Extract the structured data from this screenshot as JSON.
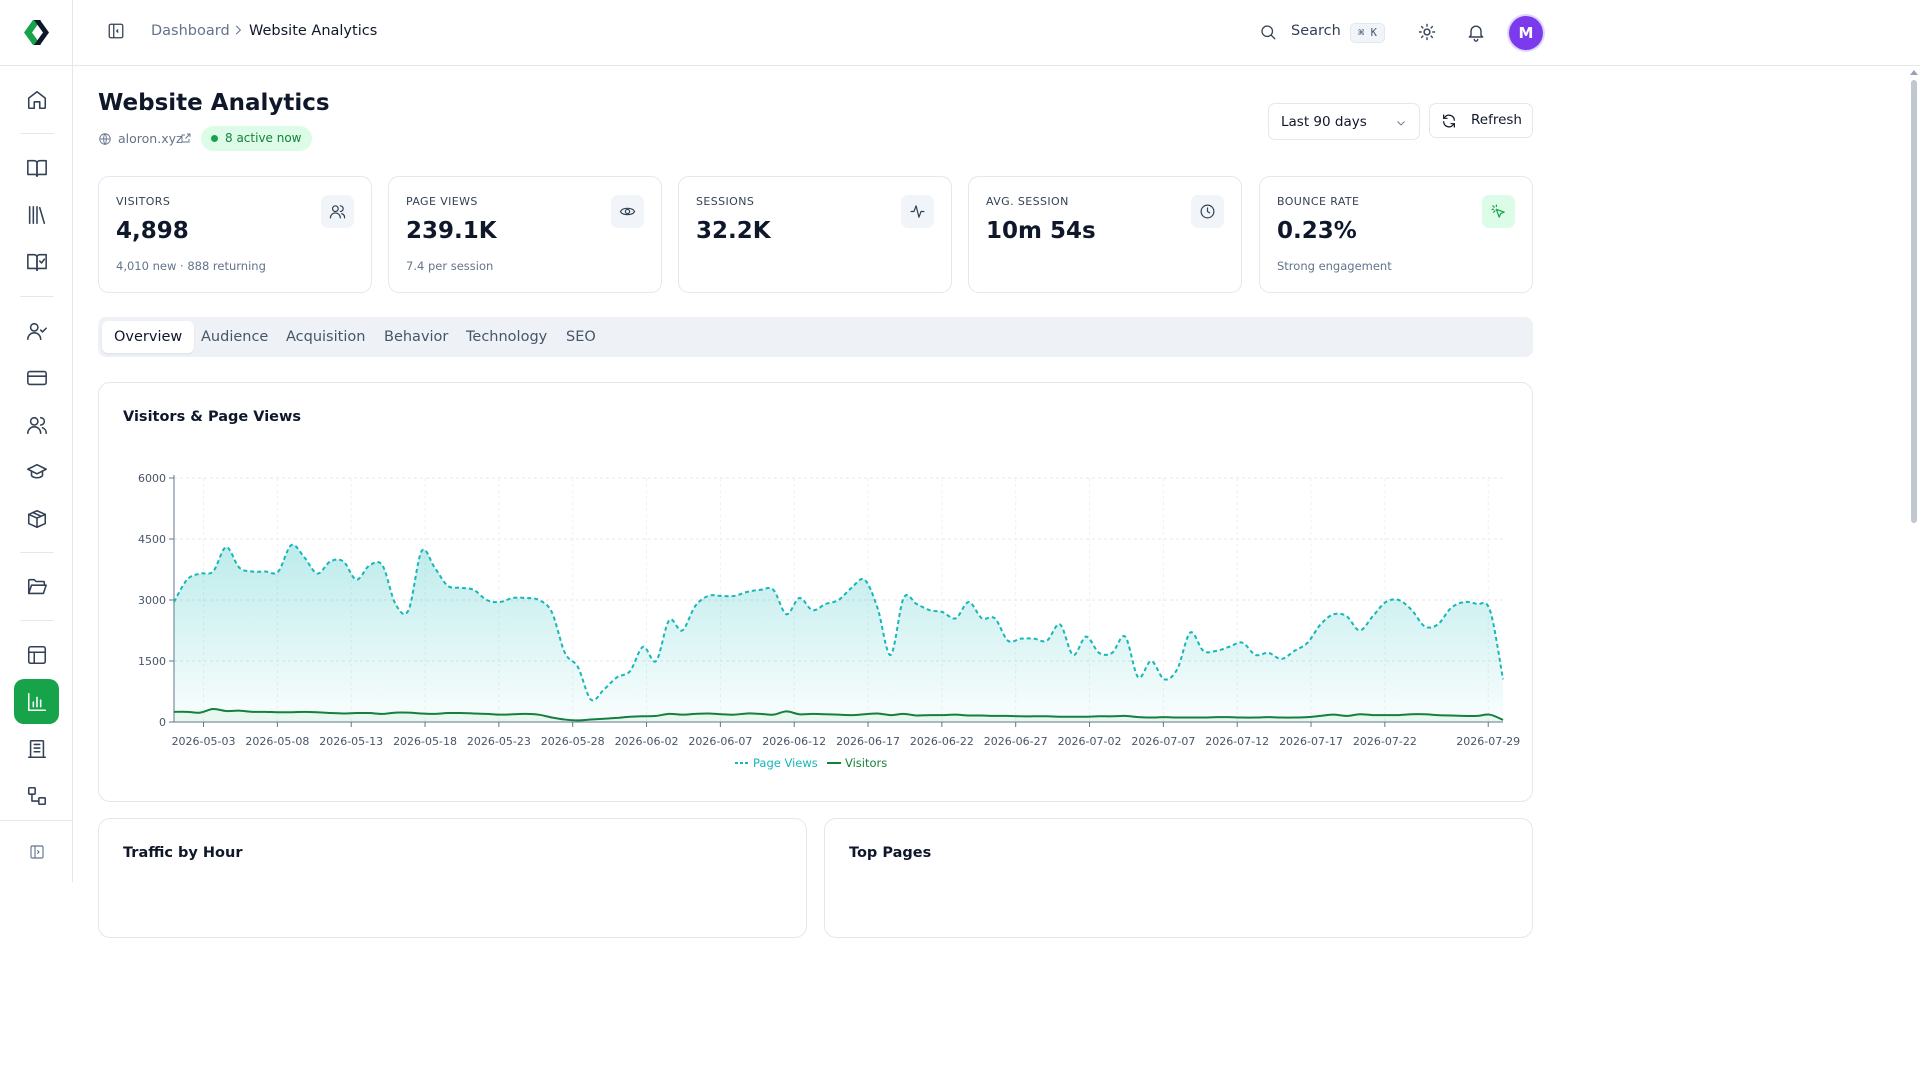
{
  "header": {
    "breadcrumb_root": "Dashboard",
    "breadcrumb_current": "Website Analytics",
    "search_label": "Search",
    "search_shortcut": "⌘ K",
    "avatar_initial": "M"
  },
  "sidebar": {
    "items": [
      {
        "icon": "home-icon"
      },
      {
        "icon": "book-open-icon"
      },
      {
        "icon": "library-icon"
      },
      {
        "icon": "book-check-icon"
      },
      {
        "icon": "user-check-icon"
      },
      {
        "icon": "credit-card-icon"
      },
      {
        "icon": "users-icon"
      },
      {
        "icon": "graduation-cap-icon"
      },
      {
        "icon": "package-icon"
      },
      {
        "icon": "folder-open-icon"
      },
      {
        "icon": "layout-icon"
      },
      {
        "icon": "bar-chart-icon",
        "active": true
      },
      {
        "icon": "building-icon"
      },
      {
        "icon": "workflow-icon"
      }
    ],
    "accent_color": "#16a34a"
  },
  "page": {
    "title": "Website Analytics",
    "site": "aloron.xyz",
    "active_badge": "8 active now",
    "range_selected": "Last 90 days",
    "refresh_label": "Refresh"
  },
  "metrics": [
    {
      "label": "VISITORS",
      "value": "4,898",
      "sub": "4,010 new · 888 returning",
      "icon": "users-icon"
    },
    {
      "label": "PAGE VIEWS",
      "value": "239.1K",
      "sub": "7.4 per session",
      "icon": "eye-icon"
    },
    {
      "label": "SESSIONS",
      "value": "32.2K",
      "sub": "",
      "icon": "activity-icon"
    },
    {
      "label": "AVG. SESSION",
      "value": "10m 54s",
      "sub": "",
      "icon": "clock-icon"
    },
    {
      "label": "BOUNCE RATE",
      "value": "0.23%",
      "sub": "Strong engagement",
      "icon": "pointer-icon"
    }
  ],
  "tabs": [
    "Overview",
    "Audience",
    "Acquisition",
    "Behavior",
    "Technology",
    "SEO"
  ],
  "active_tab": "Overview",
  "chart_title": "Visitors & Page Views",
  "bottom_cards": {
    "left_title": "Traffic by Hour",
    "right_title": "Top Pages"
  },
  "chart_data": {
    "type": "area",
    "title": "Visitors & Page Views",
    "xlabel": "",
    "ylabel": "",
    "ylim": [
      0,
      6000
    ],
    "yticks": [
      0,
      1500,
      3000,
      4500,
      6000
    ],
    "x_start": "2026-05-01",
    "x_end": "2026-07-30",
    "xticks": [
      "2026-05-03",
      "2026-05-08",
      "2026-05-13",
      "2026-05-18",
      "2026-05-23",
      "2026-05-28",
      "2026-06-02",
      "2026-06-07",
      "2026-06-12",
      "2026-06-17",
      "2026-06-22",
      "2026-06-27",
      "2026-07-02",
      "2026-07-07",
      "2026-07-12",
      "2026-07-17",
      "2026-07-22",
      "2026-07-29"
    ],
    "legend": "bottom-center",
    "grid": true,
    "series": [
      {
        "name": "Page Views",
        "color": "#14b8b8",
        "style": "dashed",
        "values": [
          2950,
          3500,
          3650,
          3700,
          4300,
          3800,
          3700,
          3700,
          3700,
          4350,
          4050,
          3650,
          3950,
          3950,
          3500,
          3850,
          3850,
          2900,
          2750,
          4200,
          3800,
          3350,
          3300,
          3250,
          3000,
          2950,
          3050,
          3050,
          3000,
          2700,
          1700,
          1350,
          550,
          800,
          1100,
          1250,
          1850,
          1500,
          2500,
          2250,
          2850,
          3100,
          3100,
          3100,
          3200,
          3250,
          3250,
          2650,
          3050,
          2750,
          2900,
          3000,
          3300,
          3500,
          2800,
          1650,
          3050,
          2900,
          2750,
          2700,
          2550,
          2950,
          2550,
          2550,
          2000,
          2050,
          2050,
          2000,
          2400,
          1650,
          2100,
          1700,
          1700,
          2100,
          1100,
          1500,
          1050,
          1300,
          2200,
          1750,
          1750,
          1850,
          1950,
          1650,
          1700,
          1550,
          1750,
          1950,
          2400,
          2650,
          2600,
          2250,
          2600,
          2950,
          3000,
          2750,
          2350,
          2400,
          2800,
          2950,
          2900,
          2750,
          1050
        ]
      },
      {
        "name": "Visitors",
        "color": "#15803d",
        "style": "solid",
        "values": [
          250,
          250,
          230,
          320,
          270,
          280,
          250,
          250,
          240,
          240,
          250,
          240,
          220,
          210,
          220,
          220,
          200,
          230,
          230,
          210,
          200,
          220,
          220,
          210,
          200,
          180,
          190,
          200,
          180,
          110,
          60,
          40,
          60,
          80,
          100,
          130,
          140,
          150,
          200,
          180,
          200,
          210,
          190,
          180,
          210,
          200,
          180,
          260,
          190,
          200,
          190,
          180,
          170,
          190,
          210,
          170,
          200,
          160,
          170,
          170,
          180,
          160,
          160,
          150,
          150,
          140,
          140,
          140,
          130,
          130,
          130,
          140,
          140,
          150,
          120,
          110,
          120,
          110,
          110,
          110,
          120,
          120,
          110,
          110,
          120,
          110,
          110,
          120,
          150,
          180,
          150,
          190,
          170,
          170,
          170,
          190,
          190,
          170,
          160,
          150,
          150,
          180,
          50
        ]
      }
    ]
  }
}
